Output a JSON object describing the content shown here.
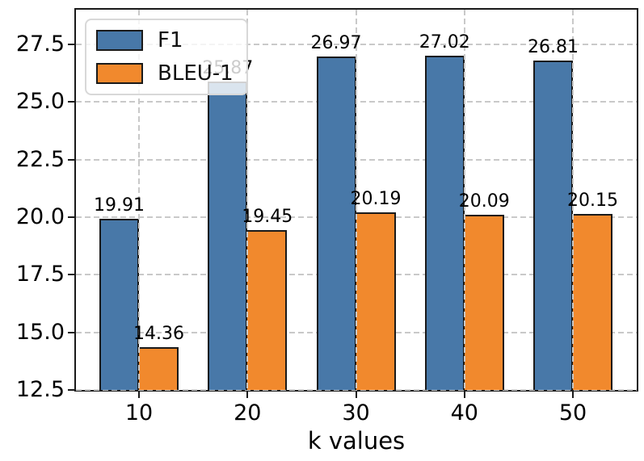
{
  "chart_data": {
    "type": "bar",
    "title": "",
    "xlabel": "k values",
    "ylabel": "",
    "categories": [
      "10",
      "20",
      "30",
      "40",
      "50"
    ],
    "series": [
      {
        "name": "F1",
        "color": "#4878A8",
        "values": [
          19.91,
          25.87,
          26.97,
          27.02,
          26.81
        ]
      },
      {
        "name": "BLEU-1",
        "color": "#F1892D",
        "values": [
          14.36,
          19.45,
          20.19,
          20.09,
          20.15
        ]
      }
    ],
    "bar_value_labels": [
      [
        "19.91",
        "25.87",
        "26.97",
        "27.02",
        "26.81"
      ],
      [
        "14.36",
        "19.45",
        "20.19",
        "20.09",
        "20.15"
      ]
    ],
    "ylim": [
      12.5,
      29.0
    ],
    "yticks": [
      12.5,
      15.0,
      17.5,
      20.0,
      22.5,
      25.0,
      27.5
    ],
    "ytick_labels": [
      "12.5",
      "15.0",
      "17.5",
      "20.0",
      "22.5",
      "25.0",
      "27.5"
    ],
    "xtick_labels": [
      "10",
      "20",
      "30",
      "40",
      "50"
    ],
    "grid": true,
    "grid_style": "dashed",
    "legend_position": "upper left",
    "colors": {
      "edge": "#1a1a1a",
      "grid": "#c9c9c9",
      "spine": "#1a1a1a",
      "text": "#000000",
      "legend_border": "#d8d8d8"
    }
  }
}
